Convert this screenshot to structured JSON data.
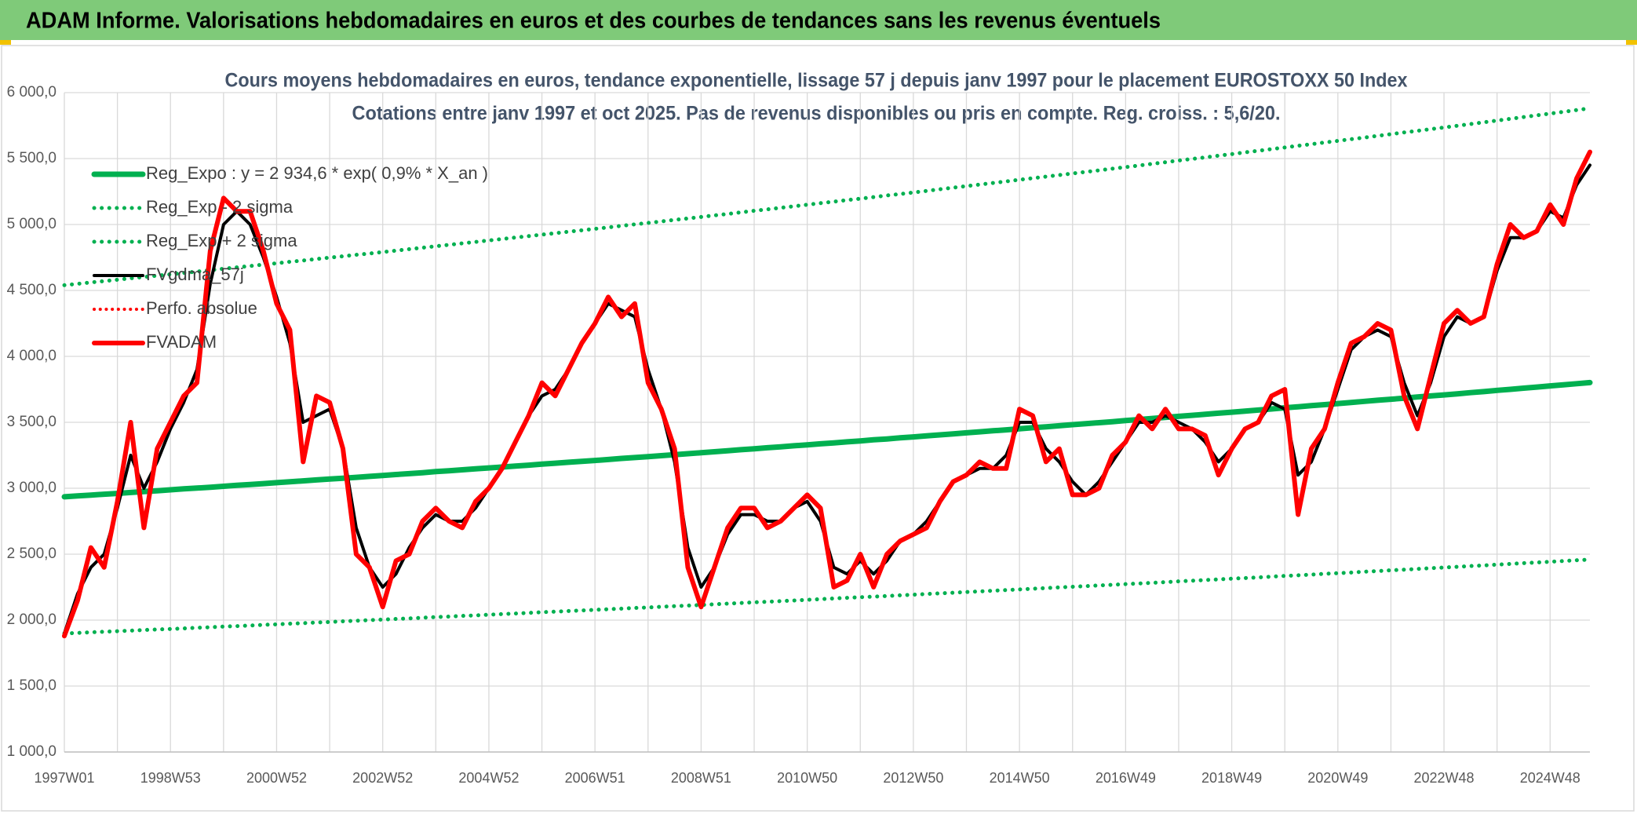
{
  "header": {
    "title": "ADAM Informe. Valorisations hebdomadaires en euros et des courbes de tendances sans les revenus éventuels"
  },
  "chart_data": {
    "type": "line",
    "title": "Cours moyens hebdomadaires en euros, tendance exponentielle, lissage 57 j depuis janv 1997 pour le placement EUROSTOXX 50 Index",
    "subtitle": "Cotations entre janv 1997 et oct 2025. Pas de revenus disponibles ou pris en compte. Reg. croiss. : 5,6/20.",
    "grid": true,
    "legend": "top-left",
    "ylim": [
      1000,
      6000
    ],
    "yticks": [
      {
        "value": 1000,
        "label": "1 000,0"
      },
      {
        "value": 1500,
        "label": "1 500,0"
      },
      {
        "value": 2000,
        "label": "2 000,0"
      },
      {
        "value": 2500,
        "label": "2 500,0"
      },
      {
        "value": 3000,
        "label": "3 000,0"
      },
      {
        "value": 3500,
        "label": "3 500,0"
      },
      {
        "value": 4000,
        "label": "4 000,0"
      },
      {
        "value": 4500,
        "label": "4 500,0"
      },
      {
        "value": 5000,
        "label": "5 000,0"
      },
      {
        "value": 5500,
        "label": "5 500,0"
      },
      {
        "value": 6000,
        "label": "6 000,0"
      }
    ],
    "categories": [
      "1997W01",
      null,
      null,
      null,
      null,
      null,
      null,
      null,
      "1998W53",
      null,
      null,
      null,
      null,
      null,
      null,
      null,
      "2000W52",
      null,
      null,
      null,
      null,
      null,
      null,
      null,
      "2002W52",
      null,
      null,
      null,
      null,
      null,
      null,
      null,
      "2004W52",
      null,
      null,
      null,
      null,
      null,
      null,
      null,
      "2006W51",
      null,
      null,
      null,
      null,
      null,
      null,
      null,
      "2008W51",
      null,
      null,
      null,
      null,
      null,
      null,
      null,
      "2010W50",
      null,
      null,
      null,
      null,
      null,
      null,
      null,
      "2012W50",
      null,
      null,
      null,
      null,
      null,
      null,
      null,
      "2014W50",
      null,
      null,
      null,
      null,
      null,
      null,
      null,
      "2016W49",
      null,
      null,
      null,
      null,
      null,
      null,
      null,
      "2018W49",
      null,
      null,
      null,
      null,
      null,
      null,
      null,
      "2020W49",
      null,
      null,
      null,
      null,
      null,
      null,
      null,
      "2022W48",
      null,
      null,
      null,
      null,
      null,
      null,
      null,
      "2024W48",
      null,
      null,
      null
    ],
    "series": [
      {
        "name": "Reg_Expo : y = 2 934,6 * exp( 0,9% *  X_an )",
        "color": "#00b050",
        "dash": "solid",
        "width": 7,
        "values": [
          2935,
          2942,
          2948,
          2955,
          2961,
          2968,
          2975,
          2981,
          2988,
          2995,
          3001,
          3008,
          3015,
          3022,
          3028,
          3035,
          3042,
          3049,
          3056,
          3063,
          3070,
          3076,
          3083,
          3090,
          3097,
          3104,
          3111,
          3118,
          3126,
          3133,
          3140,
          3147,
          3154,
          3161,
          3168,
          3175,
          3183,
          3190,
          3197,
          3204,
          3211,
          3218,
          3226,
          3233,
          3240,
          3247,
          3255,
          3262,
          3269,
          3277,
          3284,
          3292,
          3299,
          3307,
          3314,
          3322,
          3329,
          3337,
          3344,
          3352,
          3359,
          3367,
          3374,
          3382,
          3389,
          3397,
          3405,
          3412,
          3420,
          3428,
          3436,
          3443,
          3451,
          3459,
          3466,
          3474,
          3482,
          3490,
          3497,
          3505,
          3513,
          3521,
          3529,
          3537,
          3545,
          3553,
          3561,
          3569,
          3577,
          3585,
          3593,
          3601,
          3610,
          3618,
          3626,
          3634,
          3642,
          3650,
          3659,
          3667,
          3675,
          3683,
          3692,
          3700,
          3708,
          3716,
          3725,
          3733,
          3742,
          3750,
          3759,
          3767,
          3776,
          3784,
          3793,
          3801
        ]
      },
      {
        "name": "Reg_Exp - 2 sigma",
        "color": "#00b050",
        "dash": "dotted",
        "width": 5,
        "values": [
          1899,
          1903,
          1908,
          1912,
          1916,
          1920,
          1925,
          1929,
          1933,
          1937,
          1942,
          1946,
          1951,
          1955,
          1959,
          1964,
          1968,
          1973,
          1977,
          1982,
          1986,
          1991,
          1995,
          2000,
          2004,
          2009,
          2013,
          2018,
          2023,
          2027,
          2032,
          2036,
          2041,
          2046,
          2050,
          2055,
          2060,
          2064,
          2069,
          2073,
          2078,
          2083,
          2087,
          2092,
          2096,
          2101,
          2106,
          2110,
          2115,
          2120,
          2125,
          2130,
          2135,
          2139,
          2144,
          2149,
          2154,
          2159,
          2164,
          2169,
          2174,
          2178,
          2183,
          2188,
          2193,
          2198,
          2203,
          2208,
          2213,
          2218,
          2223,
          2228,
          2233,
          2238,
          2243,
          2248,
          2253,
          2258,
          2263,
          2268,
          2273,
          2278,
          2283,
          2288,
          2294,
          2299,
          2304,
          2309,
          2314,
          2319,
          2324,
          2330,
          2335,
          2340,
          2345,
          2351,
          2356,
          2361,
          2367,
          2372,
          2378,
          2383,
          2388,
          2394,
          2399,
          2404,
          2410,
          2415,
          2421,
          2426,
          2432,
          2437,
          2443,
          2448,
          2454,
          2459
        ]
      },
      {
        "name": "Reg_Exp + 2 sigma",
        "color": "#00b050",
        "dash": "dotted",
        "width": 5,
        "values": [
          4540,
          4550,
          4561,
          4571,
          4581,
          4592,
          4602,
          4612,
          4622,
          4633,
          4643,
          4654,
          4664,
          4675,
          4685,
          4696,
          4706,
          4717,
          4727,
          4738,
          4749,
          4759,
          4770,
          4780,
          4791,
          4802,
          4813,
          4824,
          4835,
          4846,
          4857,
          4868,
          4879,
          4890,
          4901,
          4912,
          4923,
          4934,
          4945,
          4956,
          4967,
          4978,
          4990,
          5001,
          5012,
          5023,
          5035,
          5046,
          5057,
          5069,
          5080,
          5092,
          5104,
          5115,
          5127,
          5138,
          5150,
          5162,
          5173,
          5185,
          5196,
          5208,
          5220,
          5231,
          5243,
          5255,
          5267,
          5279,
          5291,
          5303,
          5315,
          5327,
          5339,
          5351,
          5363,
          5375,
          5387,
          5399,
          5411,
          5423,
          5435,
          5447,
          5460,
          5472,
          5485,
          5497,
          5509,
          5522,
          5534,
          5547,
          5559,
          5572,
          5584,
          5597,
          5609,
          5622,
          5634,
          5647,
          5659,
          5672,
          5685,
          5698,
          5710,
          5723,
          5736,
          5749,
          5762,
          5775,
          5788,
          5801,
          5815,
          5828,
          5841,
          5854,
          5868,
          5881
        ]
      },
      {
        "name": "FVgdma_57j",
        "color": "#000000",
        "dash": "solid",
        "width": 4,
        "values": [
          1900,
          2200,
          2400,
          2500,
          2850,
          3250,
          3000,
          3200,
          3450,
          3650,
          3900,
          4550,
          5000,
          5100,
          5000,
          4750,
          4450,
          4100,
          3500,
          3550,
          3600,
          3300,
          2700,
          2400,
          2250,
          2350,
          2550,
          2700,
          2800,
          2750,
          2750,
          2850,
          3000,
          3150,
          3350,
          3550,
          3700,
          3750,
          3900,
          4100,
          4250,
          4400,
          4350,
          4300,
          3900,
          3600,
          3200,
          2550,
          2250,
          2400,
          2650,
          2800,
          2800,
          2750,
          2750,
          2850,
          2900,
          2750,
          2400,
          2350,
          2450,
          2350,
          2450,
          2600,
          2650,
          2750,
          2900,
          3050,
          3100,
          3150,
          3150,
          3250,
          3500,
          3500,
          3300,
          3200,
          3050,
          2950,
          3050,
          3200,
          3350,
          3500,
          3500,
          3550,
          3500,
          3450,
          3350,
          3200,
          3300,
          3450,
          3500,
          3650,
          3600,
          3100,
          3200,
          3450,
          3750,
          4050,
          4150,
          4200,
          4150,
          3800,
          3550,
          3800,
          4150,
          4300,
          4250,
          4300,
          4650,
          4900,
          4900,
          4950,
          5100,
          5050,
          5300,
          5450
        ]
      },
      {
        "name": "Perfo. absolue",
        "color": "#ff0000",
        "dash": "dotted",
        "width": 4,
        "values": [
          null,
          null,
          null,
          null,
          null,
          null,
          null,
          null,
          null,
          null,
          null,
          null,
          null,
          null,
          null,
          null,
          null,
          null,
          null,
          null,
          null,
          null,
          null,
          null,
          null,
          null,
          null,
          null,
          null,
          null,
          null,
          null,
          null,
          null,
          null,
          null,
          null,
          null,
          null,
          null,
          null,
          null,
          null,
          null,
          null,
          null,
          null,
          null,
          null,
          null,
          null,
          null,
          null,
          null,
          null,
          null,
          null,
          null,
          null,
          null,
          null,
          null,
          null,
          null,
          null,
          null,
          null,
          null,
          null,
          null,
          null,
          null,
          null,
          null,
          null,
          null,
          null,
          null,
          null,
          null,
          null,
          null,
          null,
          null,
          null,
          null,
          null,
          null,
          null,
          null,
          null,
          null,
          null,
          null,
          null,
          null,
          null,
          null,
          null,
          null,
          null,
          null,
          null,
          null,
          null,
          null,
          null,
          null,
          null,
          null,
          null,
          null,
          null,
          null,
          null,
          null
        ]
      },
      {
        "name": "FVADAM",
        "color": "#ff0000",
        "dash": "solid",
        "width": 6,
        "values": [
          1880,
          2150,
          2550,
          2400,
          2900,
          3500,
          2700,
          3300,
          3500,
          3700,
          3800,
          4800,
          5200,
          5100,
          5100,
          4800,
          4400,
          4200,
          3200,
          3700,
          3650,
          3300,
          2500,
          2400,
          2100,
          2450,
          2500,
          2750,
          2850,
          2750,
          2700,
          2900,
          3000,
          3150,
          3350,
          3550,
          3800,
          3700,
          3900,
          4100,
          4250,
          4450,
          4300,
          4400,
          3800,
          3600,
          3300,
          2400,
          2100,
          2400,
          2700,
          2850,
          2850,
          2700,
          2750,
          2850,
          2950,
          2850,
          2250,
          2300,
          2500,
          2250,
          2500,
          2600,
          2650,
          2700,
          2900,
          3050,
          3100,
          3200,
          3150,
          3150,
          3600,
          3550,
          3200,
          3300,
          2950,
          2950,
          3000,
          3250,
          3350,
          3550,
          3450,
          3600,
          3450,
          3450,
          3400,
          3100,
          3300,
          3450,
          3500,
          3700,
          3750,
          2800,
          3300,
          3450,
          3800,
          4100,
          4150,
          4250,
          4200,
          3700,
          3450,
          3850,
          4250,
          4350,
          4250,
          4300,
          4700,
          5000,
          4900,
          4950,
          5150,
          5000,
          5350,
          5550
        ]
      }
    ]
  }
}
